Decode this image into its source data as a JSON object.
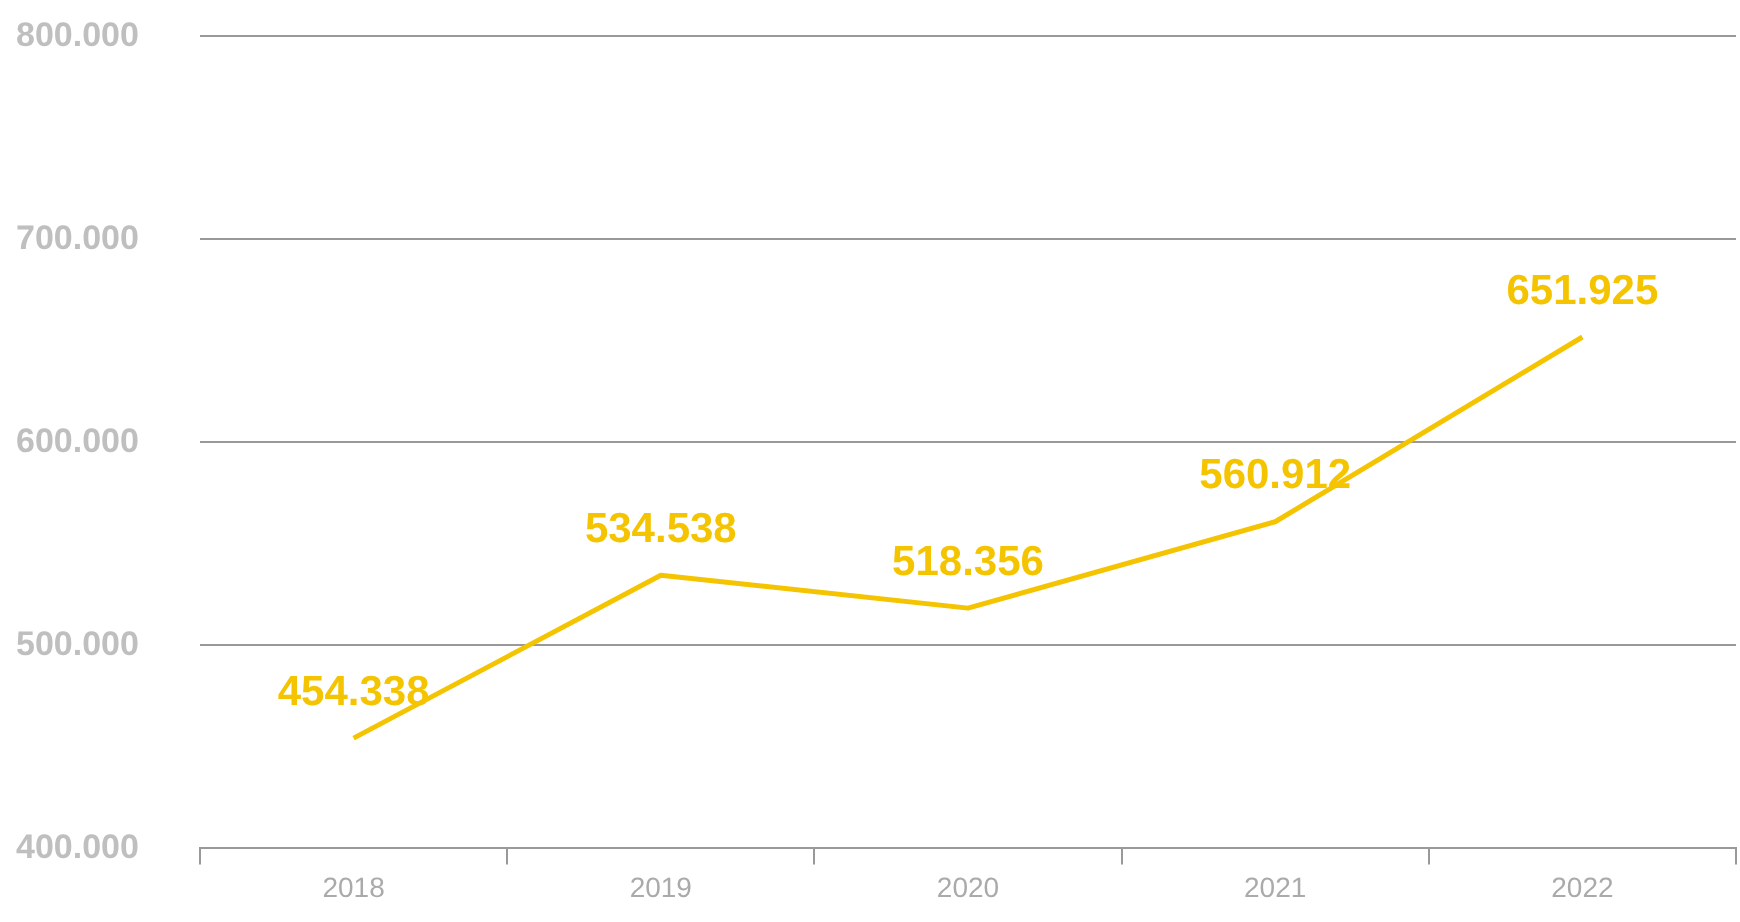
{
  "chart_data": {
    "type": "line",
    "categories": [
      "2018",
      "2019",
      "2020",
      "2021",
      "2022"
    ],
    "series": [
      {
        "color": "#f5c400",
        "values": [
          454338,
          534538,
          518356,
          560912,
          651925
        ],
        "value_labels": [
          "454.338",
          "534.538",
          "518.356",
          "560.912",
          "651.925"
        ]
      }
    ],
    "ylim": [
      400000,
      800000
    ],
    "yticks": [
      {
        "value": 400000,
        "label": "400.000"
      },
      {
        "value": 500000,
        "label": "500.000"
      },
      {
        "value": 600000,
        "label": "600.000"
      },
      {
        "value": 700000,
        "label": "700.000"
      },
      {
        "value": 800000,
        "label": "800.000"
      }
    ],
    "grid": "y",
    "legend": false,
    "marker": "none",
    "line_style": "solid"
  }
}
